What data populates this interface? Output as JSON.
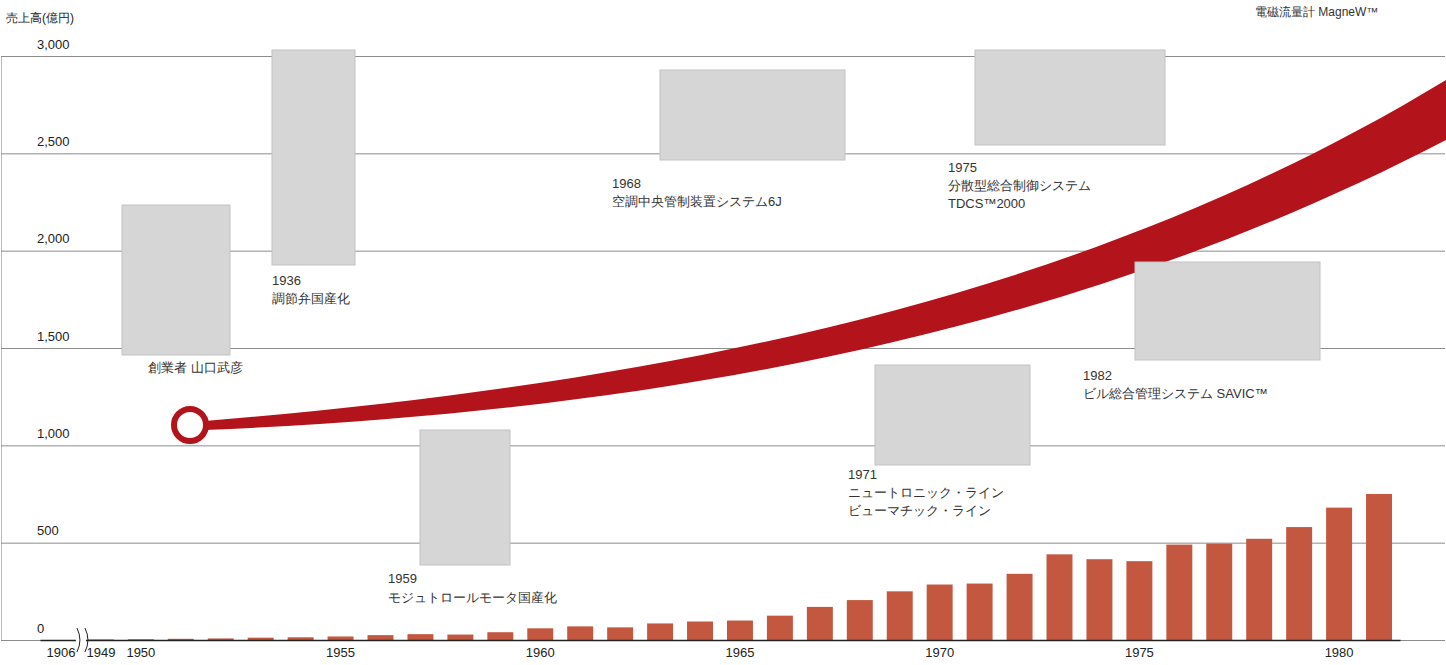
{
  "chart_data": {
    "type": "bar",
    "y_label": "売上高(億円)",
    "categories": [
      "1906",
      "1949",
      "1950",
      null,
      null,
      null,
      null,
      "1955",
      null,
      null,
      null,
      null,
      "1960",
      null,
      null,
      null,
      null,
      "1965",
      null,
      null,
      null,
      null,
      "1970",
      null,
      null,
      null,
      null,
      "1975",
      null,
      null,
      null,
      null,
      "1980",
      null
    ],
    "values": [
      null,
      3,
      4,
      6,
      8,
      12,
      14,
      18,
      25,
      30,
      28,
      40,
      60,
      70,
      65,
      85,
      95,
      100,
      125,
      170,
      205,
      250,
      285,
      290,
      340,
      440,
      415,
      405,
      490,
      495,
      520,
      580,
      680,
      750
    ],
    "color": "#c4573f",
    "ylim": [
      0,
      3000
    ],
    "yticks": [
      0,
      500,
      {
        "value": 1000,
        "label": "1,000"
      },
      {
        "value": 1500,
        "label": "1,500"
      },
      {
        "value": 2000,
        "label": "2,000"
      },
      {
        "value": 2500,
        "label": "2,500"
      },
      {
        "value": 3000,
        "label": "3,000"
      }
    ],
    "grid": true,
    "annotations": [
      {
        "lines": [
          "創業者 山口武彦"
        ]
      },
      {
        "year": "1936",
        "lines": [
          "調節弁国産化"
        ]
      },
      {
        "year": "1959",
        "lines": [
          "モジュトロールモータ国産化"
        ]
      },
      {
        "year": "1968",
        "lines": [
          "空調中央管制装置システム6J"
        ]
      },
      {
        "year": "1971",
        "lines": [
          "ニュートロニック・ライン",
          "ビューマチック・ライン"
        ]
      },
      {
        "year": "1975",
        "lines": [
          "分散型総合制御システム",
          "TDCS™2000"
        ]
      },
      {
        "year": "1982",
        "lines": [
          "ビル総合管理システム SAVIC™"
        ]
      },
      {
        "lines": [
          "電磁流量計 MagneW™"
        ]
      }
    ]
  }
}
